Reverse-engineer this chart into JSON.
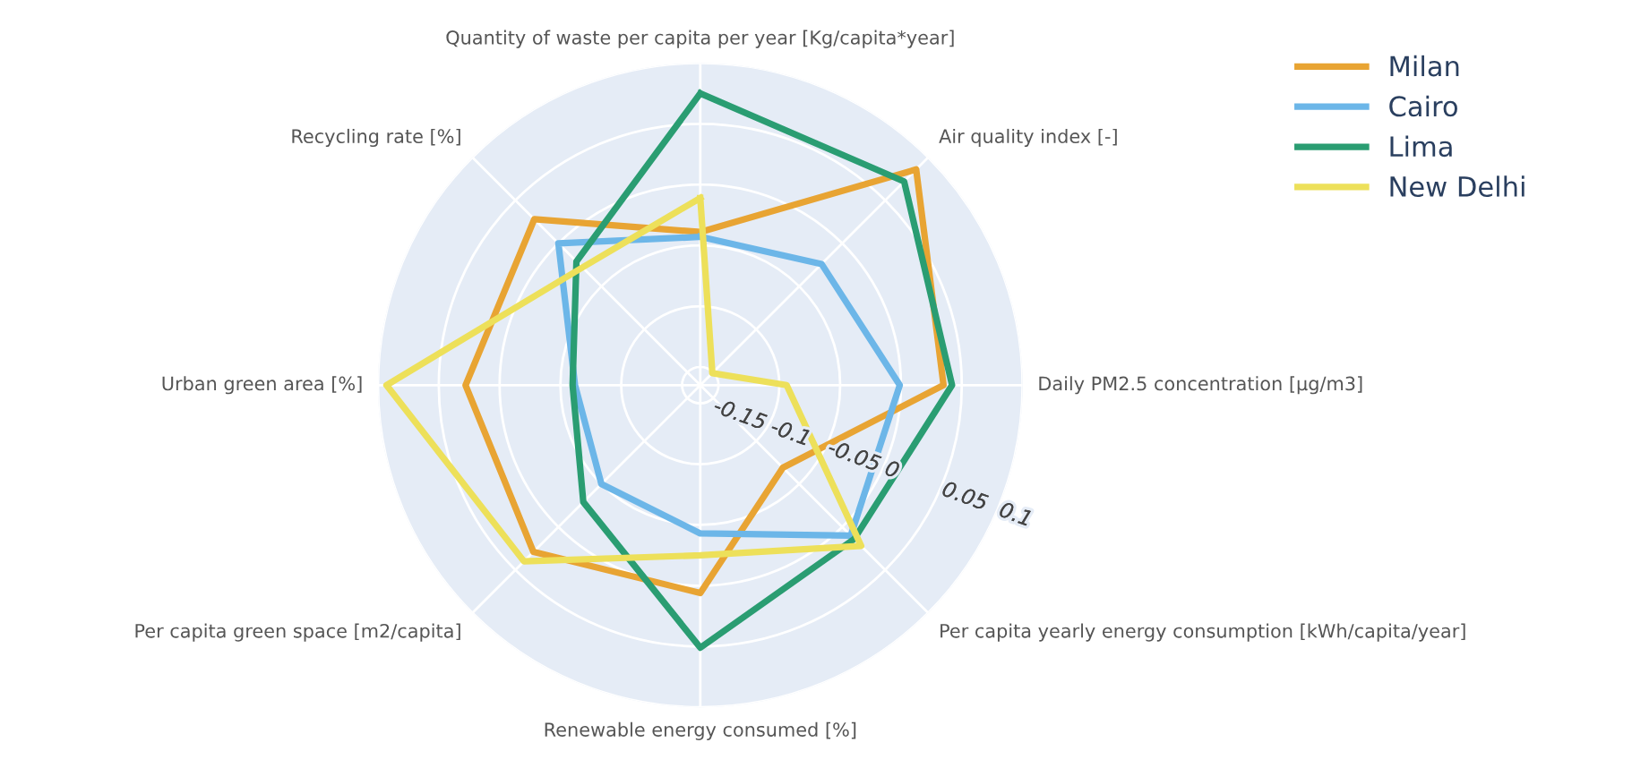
{
  "chart_data": {
    "type": "radar",
    "categories": [
      "Quantity of waste per capita per year [Kg/capita*year]",
      "Air quality index [-]",
      "Daily PM2.5 concentration [µg/m3]",
      "Per capita yearly energy consumption [kWh/capita/year]",
      "Renewable energy consumed [%]",
      "Per capita green space [m2/capita]",
      "Urban green area [%]",
      "Recycling rate [%]"
    ],
    "series": [
      {
        "name": "Milan",
        "color": "#e8a433",
        "values": [
          -0.039,
          0.086,
          0.035,
          -0.069,
          0.006,
          0.029,
          0.028,
          0.028
        ]
      },
      {
        "name": "Cairo",
        "color": "#6cb6e8",
        "values": [
          -0.043,
          -0.024,
          -0.001,
          0.01,
          -0.043,
          -0.05,
          -0.062,
          0.0
        ]
      },
      {
        "name": "Lima",
        "color": "#2a9d72",
        "values": [
          0.075,
          0.072,
          0.042,
          0.014,
          0.051,
          -0.029,
          -0.06,
          -0.021
        ]
      },
      {
        "name": "New Delhi",
        "color": "#ede05a",
        "values": [
          -0.011,
          -0.151,
          -0.094,
          0.022,
          -0.025,
          0.04,
          0.093,
          -0.028
        ]
      }
    ],
    "ylim": [
      -0.165,
      0.1
    ],
    "yticks": [
      -0.15,
      -0.1,
      -0.05,
      0,
      0.05,
      0.1
    ],
    "grid": true,
    "legend": "top right"
  }
}
